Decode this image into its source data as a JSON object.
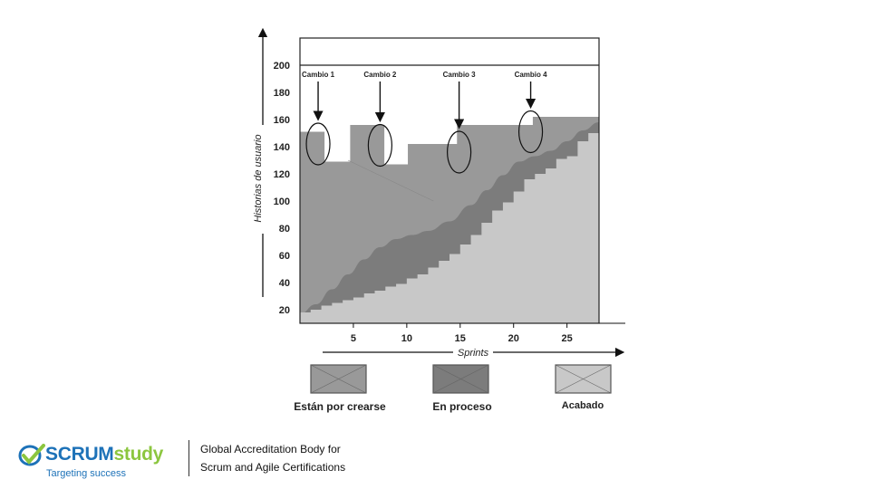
{
  "chart_data": {
    "type": "area",
    "xlabel": "Sprints",
    "ylabel": "Historias de usuario",
    "xlim": [
      0,
      28
    ],
    "ylim": [
      10,
      220
    ],
    "xticks": [
      5,
      10,
      15,
      20,
      25
    ],
    "yticks": [
      20,
      40,
      60,
      80,
      100,
      120,
      140,
      160,
      180,
      200
    ],
    "reference_line": 200,
    "series": [
      {
        "name": "Están por crearse",
        "color": "#999999",
        "x": [
          0,
          2.3,
          2.3,
          4.7,
          4.7,
          7.9,
          7.9,
          10.1,
          10.1,
          14.7,
          14.7,
          21.8,
          21.8,
          28
        ],
        "y": [
          151,
          151,
          129,
          129,
          156,
          156,
          127,
          127,
          142,
          142,
          156,
          156,
          162,
          162
        ]
      },
      {
        "name": "En proceso",
        "color": "#7c7c7c",
        "x": [
          0,
          1.5,
          3,
          4.5,
          6,
          7.5,
          9,
          10.5,
          12,
          14,
          16,
          17.5,
          19,
          20.5,
          22,
          23.5,
          25,
          26.5,
          28
        ],
        "y": [
          17,
          24,
          35,
          46,
          57,
          66,
          72,
          75,
          78,
          85,
          97,
          108,
          119,
          129,
          133,
          137,
          144,
          152,
          158
        ]
      },
      {
        "name": "Acabado",
        "color": "#c8c8c8",
        "x": [
          0,
          1,
          2,
          3,
          4,
          5,
          6,
          7,
          8,
          9,
          10,
          11,
          12,
          13,
          14,
          15,
          16,
          17,
          18,
          19,
          20,
          21,
          22,
          23,
          24,
          25,
          26,
          27,
          28
        ],
        "y": [
          18,
          20,
          23,
          25,
          27,
          29,
          32,
          34,
          37,
          39,
          43,
          46,
          51,
          56,
          61,
          68,
          75,
          84,
          93,
          99,
          107,
          116,
          120,
          124,
          131,
          133,
          144,
          150,
          150
        ]
      }
    ],
    "annotations": [
      {
        "label": "Cambio 1",
        "x": 1.7,
        "y": 142
      },
      {
        "label": "Cambio 2",
        "x": 7.5,
        "y": 141
      },
      {
        "label": "Cambio 3",
        "x": 14.9,
        "y": 136
      },
      {
        "label": "Cambio 4",
        "x": 21.6,
        "y": 151
      }
    ],
    "legend": [
      "Están por crearse",
      "En proceso",
      "Acabado"
    ],
    "legend_position": "bottom",
    "grid": false
  },
  "footer": {
    "logo_scrum": "SCRUM",
    "logo_study": "study",
    "logo_tagline": "Targeting success",
    "line1": "Global Accreditation Body for",
    "line2": "Scrum and Agile Certifications"
  }
}
